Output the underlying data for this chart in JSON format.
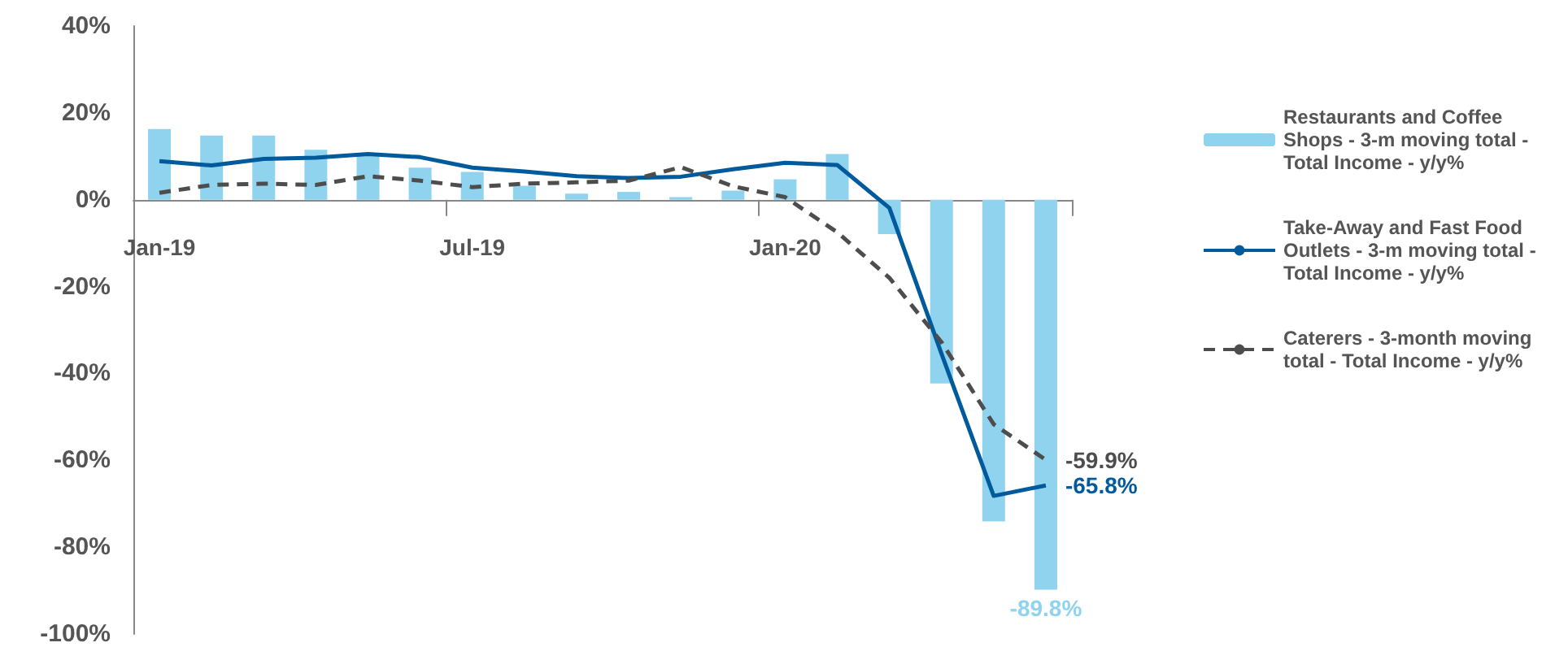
{
  "chart_data": {
    "type": "bar",
    "categories": [
      "Jan-19",
      null,
      null,
      null,
      null,
      null,
      "Jul-19",
      null,
      null,
      null,
      null,
      null,
      "Jan-20",
      null,
      null,
      null,
      null,
      null
    ],
    "series": [
      {
        "name": "Restaurants and Coffee Shops - 3-m moving total - Total Income - y/y%",
        "color": "#8fd3ef",
        "values": [
          16.3,
          14.8,
          14.8,
          11.5,
          10.7,
          7.4,
          6.4,
          3.2,
          1.4,
          1.8,
          0.6,
          2.1,
          4.7,
          10.5,
          -7.9,
          -42.3,
          -74.1,
          -89.8
        ],
        "value_labels": [
          null,
          null,
          null,
          null,
          null,
          null,
          null,
          null,
          null,
          null,
          null,
          null,
          null,
          null,
          null,
          null,
          null,
          "-89.8%"
        ]
      },
      {
        "name": "Take-Away and Fast Food Outlets - 3-m moving total - Total Income - y/y%",
        "type": "line",
        "line_style": "solid",
        "color": "#005a9c",
        "values": [
          8.9,
          7.9,
          9.4,
          9.7,
          10.5,
          9.8,
          7.4,
          6.5,
          5.4,
          5.0,
          5.3,
          7.0,
          8.5,
          8.0,
          -1.9,
          -35.5,
          -68.2,
          -65.8
        ],
        "value_labels": [
          null,
          null,
          null,
          null,
          null,
          null,
          null,
          null,
          null,
          null,
          null,
          null,
          null,
          null,
          null,
          null,
          null,
          "-65.8%"
        ]
      },
      {
        "name": "Caterers - 3-month moving total - Total Income - y/y%",
        "type": "line",
        "line_style": "dashed",
        "color": "#4d4d4d",
        "values": [
          1.6,
          3.4,
          3.7,
          3.4,
          5.4,
          4.4,
          2.9,
          3.7,
          4.0,
          4.4,
          7.5,
          3.1,
          0.6,
          -7.5,
          -18,
          -32.8,
          -51.7,
          -59.9
        ],
        "value_labels": [
          null,
          null,
          null,
          null,
          null,
          null,
          null,
          null,
          null,
          null,
          null,
          null,
          null,
          null,
          null,
          null,
          null,
          "-59.9%"
        ]
      }
    ],
    "ylim": [
      -100,
      40
    ],
    "yticks": [
      {
        "value": -100,
        "label": "-100%"
      },
      {
        "value": -80,
        "label": "-80%"
      },
      {
        "value": -60,
        "label": "-60%"
      },
      {
        "value": -40,
        "label": "-40%"
      },
      {
        "value": -20,
        "label": "-20%"
      },
      {
        "value": 0,
        "label": "0%"
      },
      {
        "value": 20,
        "label": "20%"
      },
      {
        "value": 40,
        "label": "40%"
      }
    ],
    "legend": "right",
    "marker": "none"
  }
}
